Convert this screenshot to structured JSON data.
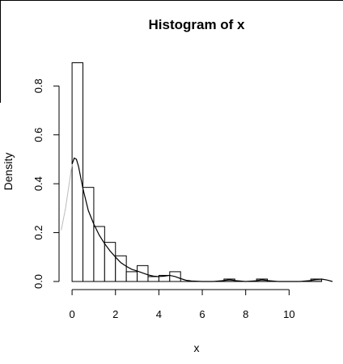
{
  "chart_data": {
    "type": "histogram",
    "title": "Histogram of x",
    "xlabel": "x",
    "ylabel": "Density",
    "xlim": [
      -0.6,
      12.0
    ],
    "ylim": [
      0,
      0.93
    ],
    "x_ticks": [
      0,
      2,
      4,
      6,
      8,
      10
    ],
    "y_ticks": [
      0.0,
      0.2,
      0.4,
      0.6,
      0.8
    ],
    "x_tick_labels": [
      "0",
      "2",
      "4",
      "6",
      "8",
      "10"
    ],
    "y_tick_labels": [
      "0.0",
      "0.2",
      "0.4",
      "0.6",
      "0.8"
    ],
    "bin_width": 0.5,
    "bins": [
      {
        "x0": 0.0,
        "x1": 0.5,
        "density": 0.895
      },
      {
        "x0": 0.5,
        "x1": 1.0,
        "density": 0.385
      },
      {
        "x0": 1.0,
        "x1": 1.5,
        "density": 0.225
      },
      {
        "x0": 1.5,
        "x1": 2.0,
        "density": 0.16
      },
      {
        "x0": 2.0,
        "x1": 2.5,
        "density": 0.105
      },
      {
        "x0": 2.5,
        "x1": 3.0,
        "density": 0.04
      },
      {
        "x0": 3.0,
        "x1": 3.5,
        "density": 0.065
      },
      {
        "x0": 3.5,
        "x1": 4.0,
        "density": 0.02
      },
      {
        "x0": 4.0,
        "x1": 4.5,
        "density": 0.025
      },
      {
        "x0": 4.5,
        "x1": 5.0,
        "density": 0.04
      },
      {
        "x0": 5.0,
        "x1": 5.5,
        "density": 0.0
      },
      {
        "x0": 5.5,
        "x1": 6.0,
        "density": 0.0
      },
      {
        "x0": 6.0,
        "x1": 6.5,
        "density": 0.0
      },
      {
        "x0": 6.5,
        "x1": 7.0,
        "density": 0.0
      },
      {
        "x0": 7.0,
        "x1": 7.5,
        "density": 0.01
      },
      {
        "x0": 7.5,
        "x1": 8.0,
        "density": 0.0
      },
      {
        "x0": 8.0,
        "x1": 8.5,
        "density": 0.0
      },
      {
        "x0": 8.5,
        "x1": 9.0,
        "density": 0.01
      },
      {
        "x0": 9.0,
        "x1": 9.5,
        "density": 0.0
      },
      {
        "x0": 9.5,
        "x1": 10.0,
        "density": 0.0
      },
      {
        "x0": 10.0,
        "x1": 10.5,
        "density": 0.0
      },
      {
        "x0": 10.5,
        "x1": 11.0,
        "density": 0.0
      },
      {
        "x0": 11.0,
        "x1": 11.5,
        "density": 0.01
      }
    ],
    "density_curve": {
      "x": [
        -0.5,
        -0.3,
        -0.1,
        0.0,
        0.1,
        0.2,
        0.3,
        0.5,
        0.75,
        1.0,
        1.25,
        1.5,
        1.75,
        2.0,
        2.25,
        2.5,
        2.75,
        3.0,
        3.25,
        3.5,
        3.75,
        4.0,
        4.25,
        4.5,
        4.75,
        5.0,
        5.25,
        5.5,
        6.0,
        6.5,
        7.0,
        7.25,
        7.5,
        8.0,
        8.5,
        8.75,
        9.0,
        9.5,
        10.0,
        10.5,
        11.0,
        11.25,
        11.5,
        11.75,
        12.0
      ],
      "y": [
        0.21,
        0.3,
        0.42,
        0.48,
        0.505,
        0.5,
        0.47,
        0.38,
        0.29,
        0.235,
        0.19,
        0.155,
        0.125,
        0.1,
        0.077,
        0.062,
        0.05,
        0.043,
        0.035,
        0.027,
        0.022,
        0.02,
        0.022,
        0.025,
        0.02,
        0.012,
        0.005,
        0.002,
        0.0,
        0.0,
        0.004,
        0.007,
        0.004,
        0.0,
        0.003,
        0.007,
        0.004,
        0.0,
        0.0,
        0.0,
        0.004,
        0.008,
        0.01,
        0.006,
        0.0
      ]
    },
    "grid": false,
    "legend": "none",
    "colors": {
      "bar_fill": "#ffffff",
      "bar_stroke": "#000000",
      "curve": "#000000",
      "curve_out_of_range": "#bbbbbb",
      "small_bar_fill": "#bbbbbb"
    }
  }
}
